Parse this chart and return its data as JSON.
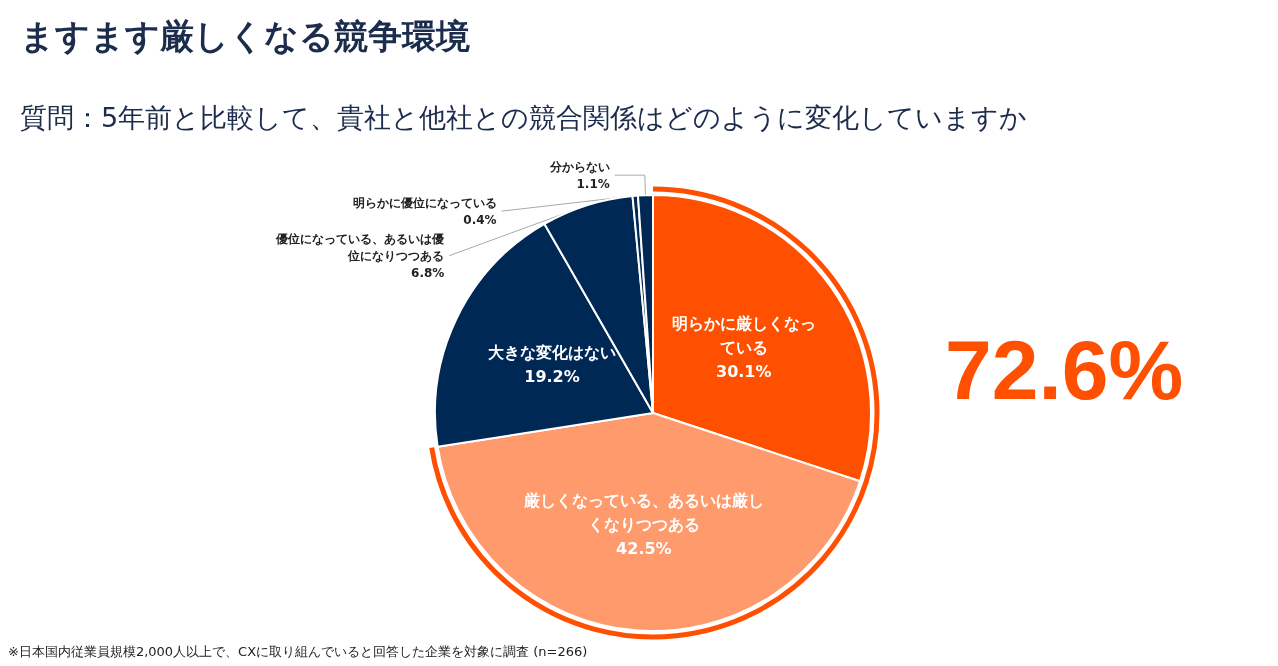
{
  "chart_data": {
    "type": "pie",
    "title": "ますます厳しくなる競争環境",
    "subtitle": "質問：5年前と比較して、貴社と他社との競合関係はどのように変化していますか",
    "categories": [
      "明らかに厳しくなっている",
      "厳しくなっている、あるいは厳しくなりつつある",
      "大きな変化はない",
      "優位になっている、あるいは優位になりつつある",
      "明らかに優位になっている",
      "分からない"
    ],
    "values": [
      30.1,
      42.5,
      19.2,
      6.8,
      0.4,
      1.1
    ],
    "value_labels": [
      "30.1%",
      "42.5%",
      "19.2%",
      "6.8%",
      "0.4%",
      "1.1%"
    ],
    "colors": [
      "#fe5000",
      "#ff9a6c",
      "#002855",
      "#002855",
      "#002855",
      "#002855"
    ],
    "annotations": [
      "72.6%",
      "※日本国内従業員規模2,000人以上で、CXに取り組んでいると回答した企業を対象に調査 (n=266)"
    ],
    "legend": false
  }
}
